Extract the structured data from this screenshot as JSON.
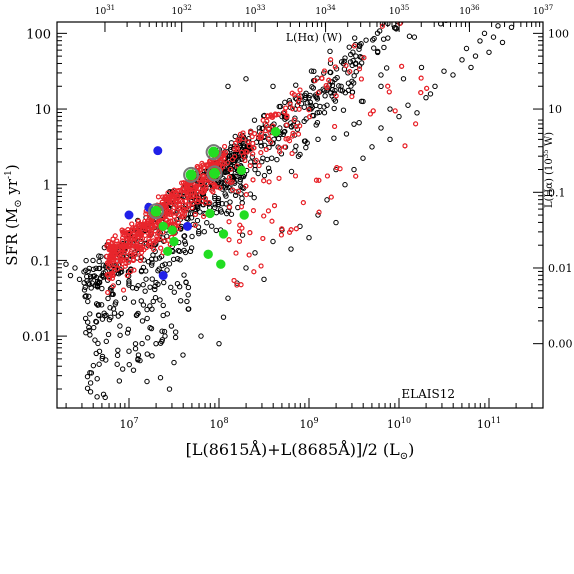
{
  "chart_data": {
    "type": "scatter",
    "panel_label": "ELAIS12",
    "xlabel": "[L(8615Å)+L(8685Å)]/2 (L",
    "xlabel_unit_symbol": "⊙",
    "xlabel_close": ")",
    "ylabel": "SFR (M",
    "ylabel_unit_symbol": "⊙",
    "ylabel_rest": " yr",
    "ylabel_exp": "-1",
    "ylabel_close": ")",
    "top_axis_label": "L(Hα) (W)",
    "right_axis_label": "L(Hα) (10",
    "right_axis_label_exp": "35",
    "right_axis_label_close": " W)",
    "x_scale": "log",
    "y_scale": "log",
    "xlim_log10": [
      6.2,
      11.6
    ],
    "ylim_log10": [
      -2.95,
      2.15
    ],
    "x_ticks": [
      {
        "label": "10",
        "exp": "7",
        "log10": 7
      },
      {
        "label": "10",
        "exp": "8",
        "log10": 8
      },
      {
        "label": "10",
        "exp": "9",
        "log10": 9
      },
      {
        "label": "10",
        "exp": "10",
        "log10": 10
      },
      {
        "label": "10",
        "exp": "11",
        "log10": 11
      }
    ],
    "y_ticks": [
      {
        "label": "100",
        "log10": 2
      },
      {
        "label": "10",
        "log10": 1
      },
      {
        "label": "1",
        "log10": 0
      },
      {
        "label": "0.1",
        "log10": -1
      },
      {
        "label": "0.01",
        "log10": -2
      }
    ],
    "top_ticks": [
      {
        "label": "10",
        "exp": "31",
        "log10_sfr": -2.1
      },
      {
        "label": "10",
        "exp": "32",
        "log10_sfr": -0.9
      },
      {
        "label": "10",
        "exp": "33",
        "log10_sfr": 0.25
      },
      {
        "label": "10",
        "exp": "34",
        "log10_sfr": 1.35
      },
      {
        "label": "10",
        "exp": "35",
        "log10_sfr": 2.5
      },
      {
        "label": "10",
        "exp": "36",
        "log10_sfr": 3.6
      },
      {
        "label": "10",
        "exp": "37",
        "log10_sfr": 4.75
      }
    ],
    "right_ticks": [
      {
        "label": "100",
        "log10": 2
      },
      {
        "label": "10",
        "log10": 1
      },
      {
        "label": "0.1",
        "log10": -0.1
      },
      {
        "label": "0.01",
        "log10": -1.1
      },
      {
        "label": "0.00",
        "log10": -2.1
      }
    ],
    "series": [
      {
        "color": "#000000",
        "marker": "open-circle",
        "generated": true,
        "relation": "log SFR ≈ 1.0·log L − 7.65",
        "points": [
          [
            6.3,
            -1.05
          ],
          [
            6.35,
            -1.2
          ],
          [
            6.4,
            -1.1
          ],
          [
            6.45,
            -1.25
          ],
          [
            6.5,
            -1.15
          ],
          [
            6.55,
            -1.3
          ],
          [
            6.6,
            -1.0
          ],
          [
            6.65,
            -1.35
          ],
          [
            6.7,
            -1.2
          ],
          [
            6.75,
            -0.95
          ],
          [
            6.8,
            -1.4
          ],
          [
            6.85,
            -1.1
          ],
          [
            6.9,
            -0.9
          ],
          [
            6.95,
            -1.5
          ],
          [
            7.0,
            -1.3
          ],
          [
            7.05,
            -1.55
          ],
          [
            7.1,
            -1.7
          ],
          [
            7.15,
            -1.8
          ],
          [
            7.2,
            -1.65
          ],
          [
            7.25,
            -1.9
          ],
          [
            7.0,
            -2.2
          ],
          [
            7.05,
            -2.45
          ],
          [
            7.1,
            -2.3
          ],
          [
            7.3,
            -2.1
          ],
          [
            7.35,
            -2.55
          ],
          [
            7.4,
            -2.0
          ],
          [
            7.5,
            -2.35
          ],
          [
            7.45,
            -2.7
          ],
          [
            7.6,
            -2.25
          ],
          [
            7.2,
            -2.6
          ],
          [
            7.8,
            -2.0
          ],
          [
            8.0,
            -2.1
          ],
          [
            8.05,
            -1.75
          ],
          [
            8.1,
            -1.5
          ],
          [
            8.2,
            -1.3
          ],
          [
            8.3,
            -1.1
          ],
          [
            8.4,
            -0.9
          ],
          [
            8.5,
            -1.25
          ],
          [
            8.6,
            -0.75
          ],
          [
            8.7,
            -0.6
          ],
          [
            8.8,
            -0.85
          ],
          [
            8.9,
            -0.55
          ],
          [
            9.0,
            -0.7
          ],
          [
            9.1,
            -0.4
          ],
          [
            9.2,
            -0.2
          ],
          [
            9.3,
            -0.5
          ],
          [
            9.4,
            0.0
          ],
          [
            9.5,
            0.2
          ],
          [
            9.6,
            0.35
          ],
          [
            9.7,
            0.5
          ],
          [
            9.8,
            0.75
          ],
          [
            9.9,
            0.6
          ],
          [
            10.0,
            0.9
          ],
          [
            10.1,
            1.05
          ],
          [
            10.2,
            0.95
          ],
          [
            10.3,
            1.15
          ],
          [
            10.4,
            1.3
          ],
          [
            10.5,
            1.5
          ],
          [
            10.6,
            1.45
          ],
          [
            10.7,
            1.65
          ],
          [
            10.75,
            1.8
          ],
          [
            10.8,
            1.55
          ],
          [
            10.85,
            1.7
          ],
          [
            10.9,
            1.9
          ],
          [
            10.95,
            2.0
          ],
          [
            11.0,
            1.75
          ],
          [
            11.05,
            1.95
          ],
          [
            11.1,
            2.1
          ],
          [
            11.15,
            1.88
          ],
          [
            11.25,
            2.08
          ],
          [
            8.55,
            0.6
          ],
          [
            8.7,
            0.9
          ],
          [
            8.85,
            1.0
          ],
          [
            9.0,
            1.15
          ],
          [
            9.2,
            1.05
          ],
          [
            9.35,
            1.25
          ],
          [
            9.5,
            0.8
          ],
          [
            9.6,
            1.1
          ],
          [
            9.8,
            1.3
          ],
          [
            9.9,
            1.0
          ],
          [
            10.05,
            1.4
          ],
          [
            10.25,
            1.55
          ],
          [
            10.35,
            1.2
          ],
          [
            8.6,
            1.3
          ],
          [
            8.3,
            1.4
          ],
          [
            8.1,
            1.3
          ],
          [
            8.9,
            0.4
          ],
          [
            9.1,
            0.6
          ],
          [
            9.3,
            0.2
          ],
          [
            8.4,
            0.2
          ]
        ]
      },
      {
        "color": "#e8262c",
        "marker": "open-circle",
        "generated": true,
        "relation": "dense band log SFR ≈ log L − 7.65 with scatter"
      },
      {
        "color": "#2020e8",
        "marker": "filled-circle",
        "points": [
          [
            7.32,
            0.45
          ],
          [
            7.0,
            -0.4
          ],
          [
            7.22,
            -0.3
          ],
          [
            7.65,
            -0.55
          ],
          [
            7.38,
            -1.2
          ]
        ]
      },
      {
        "color": "#22dd22",
        "marker": "filled-circle",
        "ring": "#777777",
        "points": [
          [
            7.3,
            -0.35
          ],
          [
            7.48,
            -0.6
          ],
          [
            7.5,
            -0.75
          ],
          [
            7.38,
            -0.55
          ],
          [
            7.43,
            -0.88
          ],
          [
            7.69,
            0.13
          ],
          [
            7.94,
            0.43
          ],
          [
            7.95,
            0.15
          ],
          [
            7.9,
            -0.38
          ],
          [
            8.05,
            -0.65
          ],
          [
            8.28,
            -0.4
          ],
          [
            8.25,
            0.19
          ],
          [
            8.63,
            0.7
          ],
          [
            7.88,
            -0.92
          ],
          [
            8.02,
            -1.05
          ]
        ]
      }
    ]
  }
}
